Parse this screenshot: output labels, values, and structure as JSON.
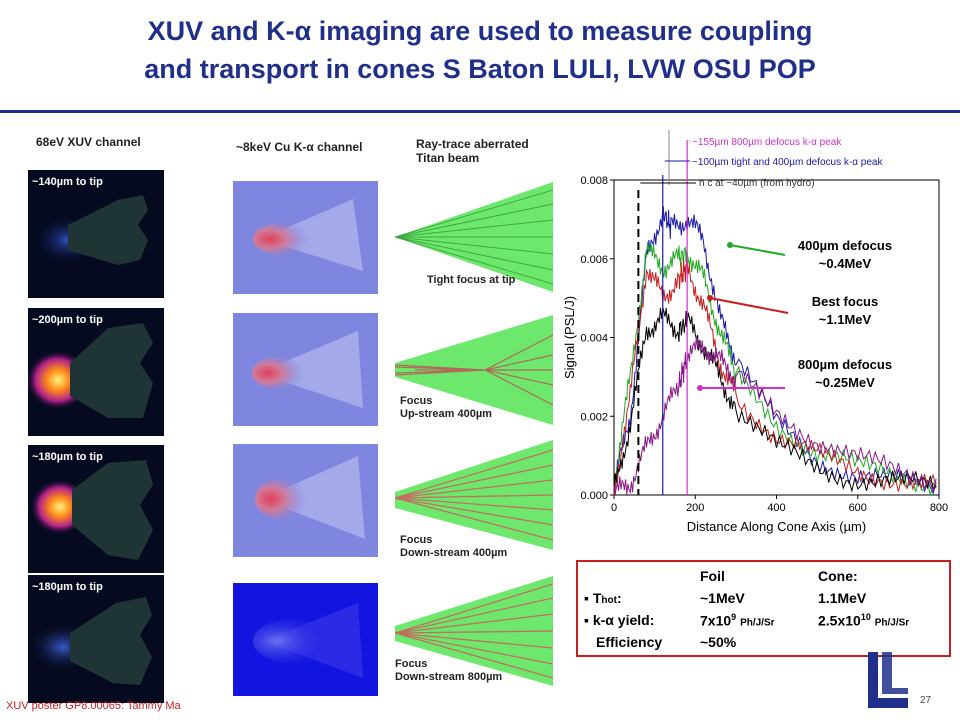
{
  "title": {
    "line1": "XUV and K-α imaging are used to measure coupling",
    "line2": "and transport in cones   S Baton LULI, LVW OSU POP"
  },
  "columns": {
    "xuv": "68eV XUV channel",
    "kalpha": "~8keV Cu K-α channel",
    "ray": "Ray-trace  aberrated\nTitan beam"
  },
  "xuv_images": [
    {
      "tip": "~140µm  to tip",
      "brightness": 0.3
    },
    {
      "tip": "~200µm  to tip",
      "brightness": 1.0
    },
    {
      "tip": "~180µm  to tip",
      "brightness": 0.95
    },
    {
      "tip": "~180µm  to tip",
      "brightness": 0.35
    }
  ],
  "kalpha_images": [
    {
      "strength": 0.8
    },
    {
      "strength": 0.75
    },
    {
      "strength": 0.7
    },
    {
      "strength": 0.2
    }
  ],
  "ray_images": [
    {
      "label": "Tight focus at tip"
    },
    {
      "label": "Focus\nUp-stream  400µm"
    },
    {
      "label": "Focus\nDown-stream  400µm"
    },
    {
      "label": "Focus\nDown-stream  800µm"
    }
  ],
  "chart_data": {
    "type": "line",
    "xlabel": "Distance Along Cone Axis (µm)",
    "ylabel": "Signal (PSL/J)",
    "xlim": [
      0,
      800
    ],
    "ylim": [
      0,
      0.008
    ],
    "xticks": [
      0,
      200,
      400,
      600,
      800
    ],
    "yticks": [
      0.0,
      0.002,
      0.004,
      0.006,
      0.008
    ],
    "ytick_labels": [
      "0.000",
      "0.002",
      "0.004",
      "0.006",
      "0.008"
    ],
    "series": [
      {
        "color": "#1a1aa8",
        "x": [
          0,
          40,
          80,
          120,
          140,
          180,
          220,
          260,
          300,
          400,
          500,
          600,
          700,
          800
        ],
        "y": [
          0.0002,
          0.002,
          0.006,
          0.0072,
          0.0068,
          0.007,
          0.0065,
          0.0045,
          0.0035,
          0.0018,
          0.0009,
          0.0005,
          0.0003,
          0.0002
        ]
      },
      {
        "color": "#1faa1f",
        "x": [
          0,
          40,
          80,
          120,
          160,
          180,
          220,
          260,
          300,
          400,
          500,
          600,
          700,
          800
        ],
        "y": [
          0.0002,
          0.003,
          0.0062,
          0.0058,
          0.006,
          0.0062,
          0.0055,
          0.0042,
          0.003,
          0.0018,
          0.0011,
          0.0007,
          0.0005,
          0.0003
        ]
      },
      {
        "color": "#c81e1e",
        "x": [
          0,
          40,
          80,
          120,
          160,
          180,
          220,
          260,
          300,
          400,
          500,
          600,
          700,
          800
        ],
        "y": [
          0.0001,
          0.0025,
          0.0058,
          0.005,
          0.0055,
          0.0058,
          0.0048,
          0.0034,
          0.0025,
          0.0015,
          0.001,
          0.0006,
          0.0004,
          0.0002
        ]
      },
      {
        "color": "#000000",
        "x": [
          0,
          40,
          80,
          120,
          160,
          180,
          220,
          260,
          300,
          400,
          500,
          600,
          700,
          800
        ],
        "y": [
          0.0001,
          0.0018,
          0.0042,
          0.0045,
          0.0042,
          0.0044,
          0.0038,
          0.003,
          0.0022,
          0.0012,
          0.0007,
          0.0004,
          0.0003,
          0.0002
        ]
      },
      {
        "color": "#8a1a8a",
        "x": [
          0,
          40,
          80,
          120,
          160,
          180,
          220,
          260,
          300,
          400,
          500,
          600,
          700,
          800
        ],
        "y": [
          0.0,
          0.0003,
          0.0012,
          0.002,
          0.0028,
          0.0035,
          0.0038,
          0.0034,
          0.003,
          0.0021,
          0.0014,
          0.0009,
          0.0006,
          0.0004
        ]
      }
    ],
    "markers": [
      {
        "x": 60,
        "style": "dashed",
        "color": "#000000",
        "label": "n c at ~40µm (from hydro)"
      },
      {
        "x": 120,
        "style": "solid",
        "color": "#1a1aa8",
        "label": "~100µm tight and 400µm defocus k-α peak"
      },
      {
        "x": 180,
        "style": "solid",
        "color": "#d030d0",
        "label": "~155µm  800µm defocus k-α peak"
      }
    ],
    "annotations": [
      {
        "text": "400µm defocus\n~0.4MeV",
        "color": "#1faa1f"
      },
      {
        "text": "Best focus\n~1.1MeV",
        "color": "#c81e1e"
      },
      {
        "text": "800µm defocus\n~0.25MeV",
        "color": "#d030d0"
      }
    ]
  },
  "table": {
    "headers": [
      "Foil",
      "Cone:"
    ],
    "rows": [
      {
        "label": "T hot:",
        "foil": "~1MeV",
        "cone": "1.1MeV"
      },
      {
        "label": "k-α yield:",
        "foil": "7x10^9 Ph/J/Sr",
        "cone": "2.5x10^10 Ph/J/Sr"
      },
      {
        "label": "Efficiency",
        "foil": "~50%",
        "cone": ""
      }
    ]
  },
  "footer": "XUV poster GP8.00065: Tammy Ma",
  "page_number": "27"
}
